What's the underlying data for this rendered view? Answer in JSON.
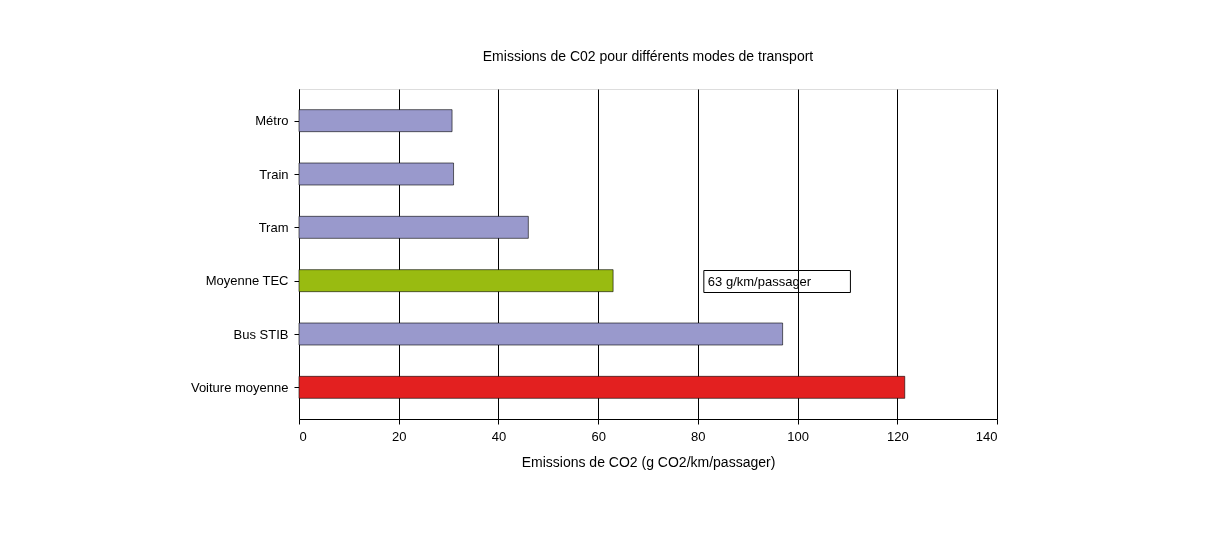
{
  "chart_data": {
    "type": "bar",
    "orientation": "horizontal",
    "title": "Emissions de C02 pour différents modes de transport",
    "xlabel": "Emissions de CO2 (g CO2/km/passager)",
    "categories": [
      "Métro",
      "Train",
      "Tram",
      "Moyenne TEC",
      "Bus STIB",
      "Voiture moyenne"
    ],
    "values": [
      30.7,
      31,
      46,
      63,
      97,
      121.5
    ],
    "colors": [
      "#9999cc",
      "#9999cc",
      "#9999cc",
      "#99bb11",
      "#9999cc",
      "#e32020"
    ],
    "xlim": [
      0,
      140
    ],
    "xticks": [
      0,
      20,
      40,
      60,
      80,
      100,
      120,
      140
    ],
    "grid": "x",
    "annotations": [
      "63 g/km/passager"
    ]
  }
}
